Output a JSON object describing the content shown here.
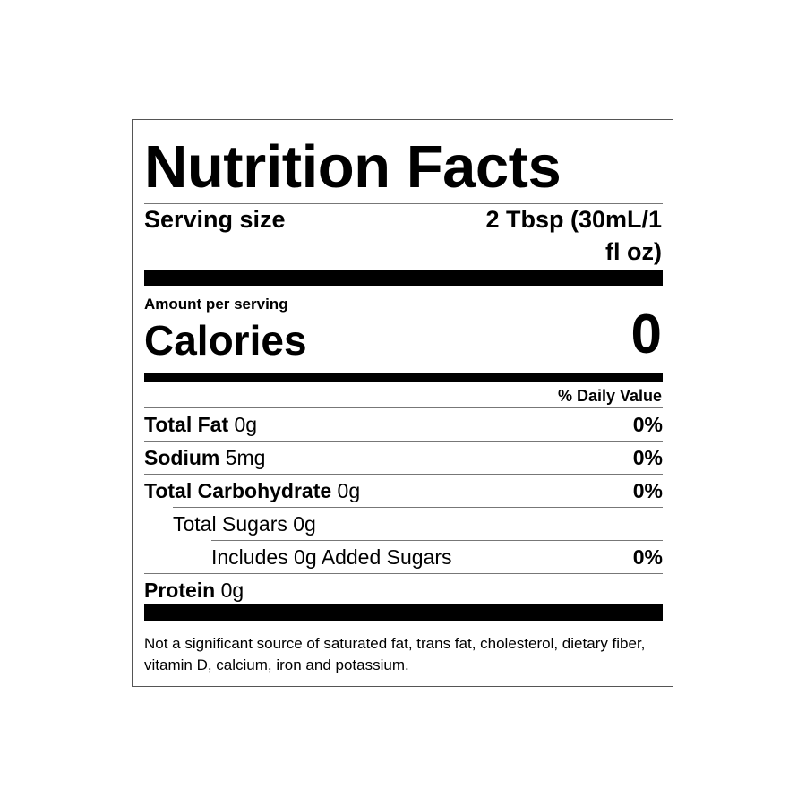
{
  "label": {
    "title": "Nutrition Facts",
    "serving_size_label": "Serving size",
    "serving_size_lines": [
      "2 Tbsp (30mL/1",
      "fl oz)"
    ],
    "amount_per_serving": "Amount per serving",
    "calories_label": "Calories",
    "calories_value": "0",
    "daily_value_header": "% Daily Value",
    "rows": [
      {
        "name": "Total Fat",
        "amount": "0g",
        "dv": "0%",
        "indent": 0
      },
      {
        "name": "Sodium",
        "amount": "5mg",
        "dv": "0%",
        "indent": 0
      },
      {
        "name": "Total Carbohydrate",
        "amount": "0g",
        "dv": "0%",
        "indent": 0
      },
      {
        "text": "Total Sugars 0g",
        "indent": 1
      },
      {
        "text": "Includes 0g Added Sugars",
        "dv": "0%",
        "indent": 2
      },
      {
        "name": "Protein",
        "amount": "0g",
        "indent": 0
      }
    ],
    "footnote": "Not a significant source of saturated fat, trans fat, cholesterol, dietary fiber, vitamin D, calcium, iron and potassium."
  }
}
